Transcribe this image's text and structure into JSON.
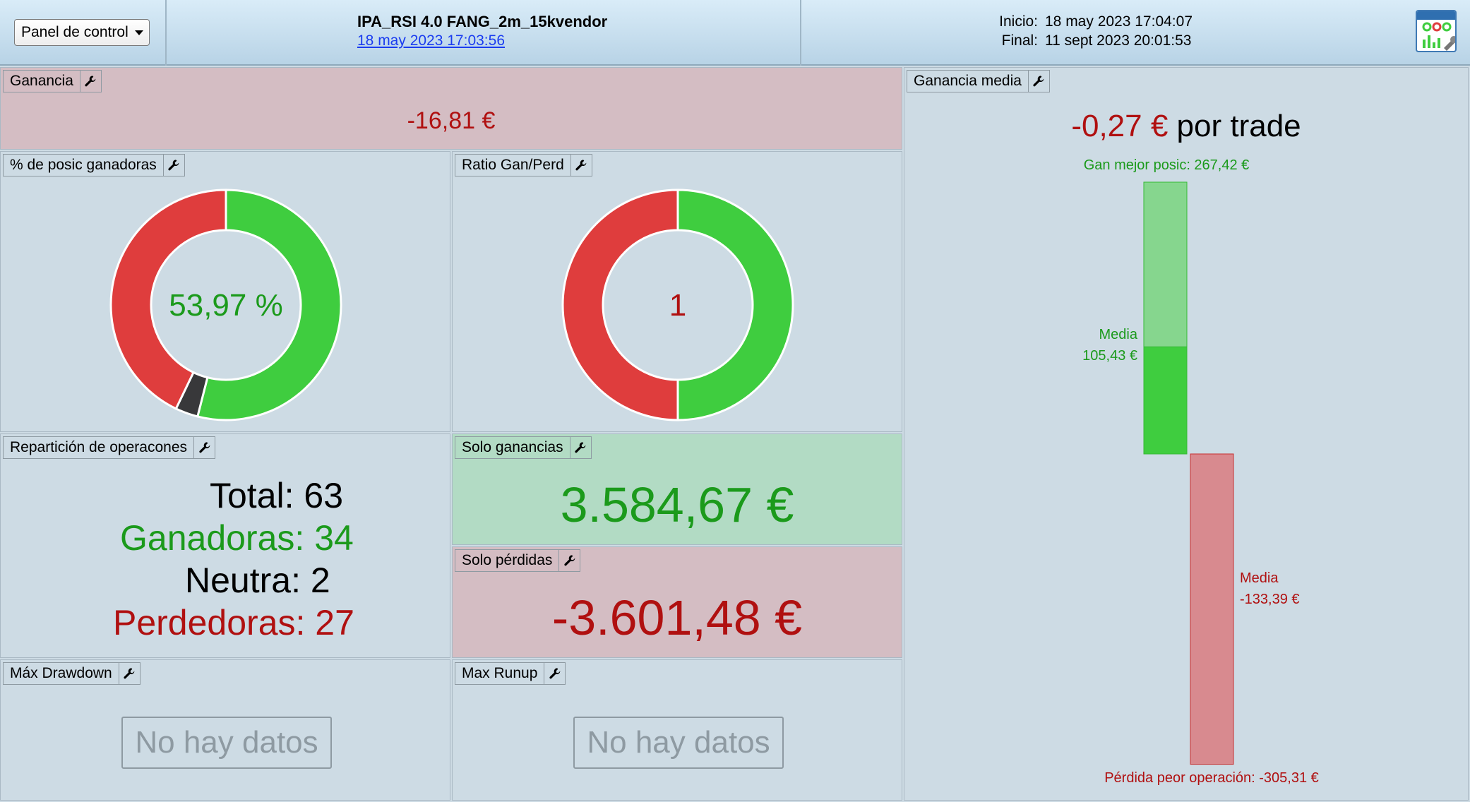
{
  "header": {
    "panel_select": "Panel de control",
    "strategy_title": "IPA_RSI 4.0 FANG_2m_15kvendor",
    "strategy_date": "18 may 2023 17:03:56",
    "start_label": "Inicio:",
    "start_value": "18 may 2023 17:04:07",
    "end_label": "Final:",
    "end_value": "11 sept 2023 20:01:53"
  },
  "ganancia": {
    "title": "Ganancia",
    "value": "-16,81 €"
  },
  "pct_ganadoras": {
    "title": "% de posic ganadoras",
    "value": "53,97 %",
    "donut": {
      "win": 34,
      "neutral": 2,
      "loss": 27
    }
  },
  "ratio": {
    "title": "Ratio Gan/Perd",
    "value": "1",
    "donut": {
      "win": 50,
      "loss": 50
    }
  },
  "reparticion": {
    "title": "Repartición de operacones",
    "total_label": "Total:",
    "total": "63",
    "ganadoras_label": "Ganadoras:",
    "ganadoras": "34",
    "neutra_label": "Neutra:",
    "neutra": "2",
    "perdedoras_label": "Perdedoras:",
    "perdedoras": "27"
  },
  "solo_ganancias": {
    "title": "Solo ganancias",
    "value": "3.584,67 €"
  },
  "solo_perdidas": {
    "title": "Solo pérdidas",
    "value": "-3.601,48 €"
  },
  "max_drawdown": {
    "title": "Máx Drawdown",
    "no_data": "No hay datos"
  },
  "max_runup": {
    "title": "Max Runup",
    "no_data": "No hay datos"
  },
  "ganancia_media": {
    "title": "Ganancia media",
    "value": "-0,27 €",
    "suffix": "por trade",
    "best_label": "Gan mejor posic: 267,42 €",
    "win_mean_label": "Media",
    "win_mean_value": "105,43 €",
    "loss_mean_label": "Media",
    "loss_mean_value": "-133,39 €",
    "worst_label": "Pérdida peor operación: -305,31 €",
    "chart": {
      "best": 267.42,
      "win_mean": 105.43,
      "loss_mean": -133.39,
      "worst": -305.31
    }
  },
  "colors": {
    "win": "#3fcd3f",
    "loss": "#df3d3d",
    "neutral": "#38383a",
    "win_light": "#86d68e",
    "loss_light": "#d88a8f"
  }
}
